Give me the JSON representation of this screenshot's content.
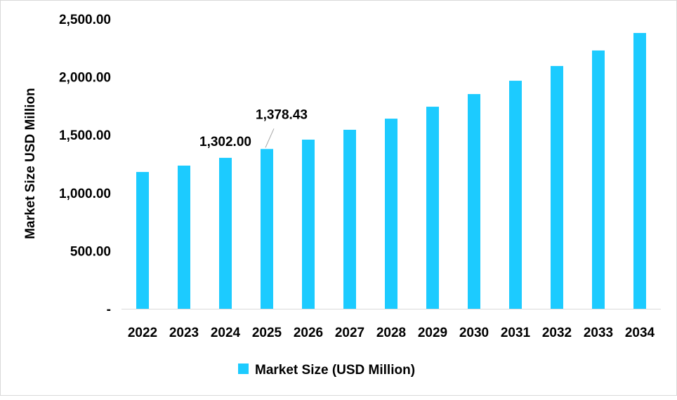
{
  "chart_data": {
    "type": "bar",
    "categories": [
      "2022",
      "2023",
      "2024",
      "2025",
      "2026",
      "2027",
      "2028",
      "2029",
      "2030",
      "2031",
      "2032",
      "2033",
      "2034"
    ],
    "series": [
      {
        "name": "Market Size (USD Million)",
        "color": "#1CCBFF",
        "values": [
          1180,
          1235,
          1302.0,
          1378.43,
          1459,
          1544,
          1640,
          1743,
          1852,
          1967,
          2094,
          2228,
          2379
        ]
      }
    ],
    "data_labels": [
      {
        "category": "2024",
        "text": "1,302.00"
      },
      {
        "category": "2025",
        "text": "1,378.43"
      }
    ],
    "ylabel": "Market Size USD Million",
    "xlabel": "",
    "ylim": [
      0,
      2500
    ],
    "yticks": [
      {
        "value": 0,
        "label": "-"
      },
      {
        "value": 500,
        "label": "500.00"
      },
      {
        "value": 1000,
        "label": "1,000.00"
      },
      {
        "value": 1500,
        "label": "1,500.00"
      },
      {
        "value": 2000,
        "label": "2,000.00"
      },
      {
        "value": 2500,
        "label": "2,500.00"
      }
    ],
    "grid": false,
    "legend": "bottom"
  }
}
